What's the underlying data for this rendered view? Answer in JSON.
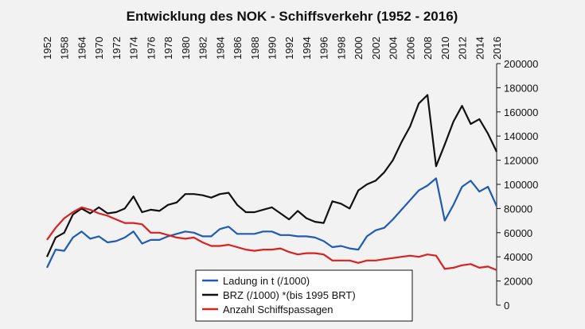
{
  "chart_data": {
    "type": "line",
    "title": "Entwicklung des NOK - Schiffsverkehr (1952 - 2016)",
    "xlabel": "",
    "ylabel": "",
    "x_tick_labels": [
      "1952",
      "1958",
      "1964",
      "1970",
      "1972",
      "1974",
      "1976",
      "1978",
      "1980",
      "1982",
      "1984",
      "1986",
      "1988",
      "1990",
      "1992",
      "1994",
      "1996",
      "1998",
      "2000",
      "2002",
      "2004",
      "2006",
      "2008",
      "2010",
      "2012",
      "2014",
      "2016"
    ],
    "x_slots": [
      "1952",
      "1955",
      "1958",
      "1961",
      "1964",
      "1967",
      "1970",
      "1971",
      "1972",
      "1973",
      "1974",
      "1975",
      "1976",
      "1977",
      "1978",
      "1979",
      "1980",
      "1981",
      "1982",
      "1983",
      "1984",
      "1985",
      "1986",
      "1987",
      "1988",
      "1989",
      "1990",
      "1991",
      "1992",
      "1993",
      "1994",
      "1995",
      "1996",
      "1997",
      "1998",
      "1999",
      "2000",
      "2001",
      "2002",
      "2003",
      "2004",
      "2005",
      "2006",
      "2007",
      "2008",
      "2009",
      "2010",
      "2011",
      "2012",
      "2013",
      "2014",
      "2015",
      "2016"
    ],
    "ylim": [
      0,
      200000
    ],
    "y_ticks": [
      "0",
      "20000",
      "40000",
      "60000",
      "80000",
      "100000",
      "120000",
      "140000",
      "160000",
      "180000",
      "200000"
    ],
    "y_axis_position": "right",
    "grid": false,
    "legend_position": "bottom-center",
    "series": [
      {
        "name": "Ladung in t (/1000)",
        "color": "#1f5bb5",
        "values": [
          31000,
          46000,
          45000,
          56000,
          61000,
          55000,
          57000,
          52000,
          53000,
          56000,
          61000,
          51000,
          54000,
          54000,
          57000,
          59000,
          61000,
          60000,
          57000,
          57000,
          63000,
          65000,
          59000,
          59000,
          59000,
          61000,
          61000,
          58000,
          58000,
          57000,
          57000,
          56000,
          53000,
          48000,
          49000,
          47000,
          46000,
          57000,
          62000,
          64000,
          71000,
          79000,
          87000,
          95000,
          99000,
          105000,
          70000,
          83000,
          98000,
          103000,
          94000,
          98000,
          82000
        ]
      },
      {
        "name": "BRZ (/1000) *(bis 1995 BRT)",
        "color": "#111111",
        "values": [
          40000,
          56000,
          60000,
          75000,
          80000,
          76000,
          81000,
          76000,
          77000,
          80000,
          90000,
          77000,
          79000,
          78000,
          83000,
          85000,
          92000,
          92000,
          91000,
          89000,
          92000,
          93000,
          83000,
          77000,
          77000,
          79000,
          81000,
          76000,
          71000,
          78000,
          72000,
          69000,
          68000,
          86000,
          84000,
          80000,
          95000,
          100000,
          103000,
          110000,
          120000,
          135000,
          148000,
          167000,
          174000,
          115000,
          133000,
          152000,
          165000,
          150000,
          154000,
          142000,
          127000
        ]
      },
      {
        "name": "Anzahl Schiffspassagen",
        "color": "#d92121",
        "values": [
          54000,
          64000,
          72000,
          77000,
          81000,
          79000,
          76000,
          74000,
          71000,
          68000,
          68000,
          67000,
          60000,
          60000,
          58000,
          56000,
          55000,
          56000,
          52000,
          49000,
          49000,
          50000,
          48000,
          46000,
          45000,
          46000,
          46000,
          47000,
          44000,
          42000,
          43000,
          43000,
          42000,
          37000,
          37000,
          37000,
          35000,
          37000,
          37000,
          38000,
          39000,
          40000,
          41000,
          40000,
          42000,
          41000,
          30000,
          31000,
          33000,
          34000,
          31000,
          32000,
          29000
        ]
      }
    ]
  }
}
